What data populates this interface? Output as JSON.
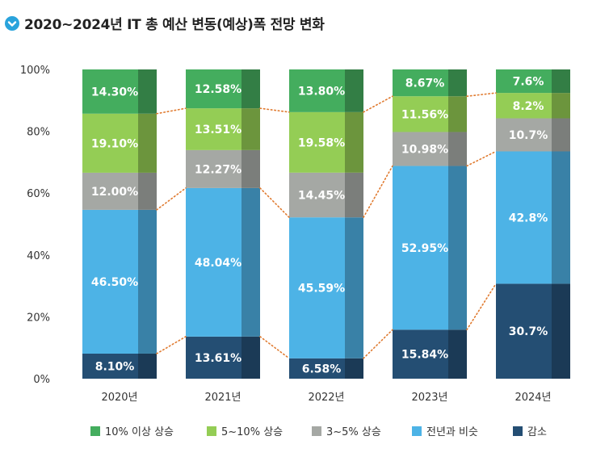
{
  "chart_data": {
    "type": "bar",
    "stacked": true,
    "title": "2020~2024년 IT 총 예산 변동(예상)폭 전망 변화",
    "categories": [
      "2020년",
      "2021년",
      "2022년",
      "2023년",
      "2024년"
    ],
    "yticks": [
      "0%",
      "20%",
      "40%",
      "60%",
      "80%",
      "100%"
    ],
    "ylim": [
      0,
      100
    ],
    "grid": false,
    "legend_position": "bottom",
    "series": [
      {
        "name": "감소",
        "color": "#244e73",
        "shade": "#1b3a56",
        "values": [
          8.1,
          13.61,
          6.58,
          15.84,
          30.7
        ],
        "labels": [
          "8.10%",
          "13.61%",
          "6.58%",
          "15.84%",
          "30.7%"
        ]
      },
      {
        "name": "전년과 비슷",
        "color": "#4db3e6",
        "shade": "#3981a7",
        "values": [
          46.5,
          48.04,
          45.59,
          52.95,
          42.8
        ],
        "labels": [
          "46.50%",
          "48.04%",
          "45.59%",
          "52.95%",
          "42.8%"
        ]
      },
      {
        "name": "3~5% 상승",
        "color": "#a5a8a4",
        "shade": "#7b7e7b",
        "values": [
          12.0,
          12.27,
          14.45,
          10.98,
          10.7
        ],
        "labels": [
          "12.00%",
          "12.27%",
          "14.45%",
          "10.98%",
          "10.7%"
        ]
      },
      {
        "name": "5~10% 상승",
        "color": "#94cd55",
        "shade": "#6c953d",
        "values": [
          19.1,
          13.51,
          19.58,
          11.56,
          8.2
        ],
        "labels": [
          "19.10%",
          "13.51%",
          "19.58%",
          "11.56%",
          "8.2%"
        ]
      },
      {
        "name": "10% 이상 상승",
        "color": "#44ad5e",
        "shade": "#337e45",
        "values": [
          14.3,
          12.58,
          13.8,
          8.67,
          7.6
        ],
        "labels": [
          "14.30%",
          "12.58%",
          "13.80%",
          "8.67%",
          "7.6%"
        ]
      }
    ],
    "legend_order": [
      "10% 이상 상승",
      "5~10% 상승",
      "3~5% 상승",
      "전년과 비슷",
      "감소"
    ],
    "connector_color": "#e07a2f"
  },
  "icon": {
    "name": "down-arrow-circle-icon",
    "color": "#29a3dc"
  }
}
